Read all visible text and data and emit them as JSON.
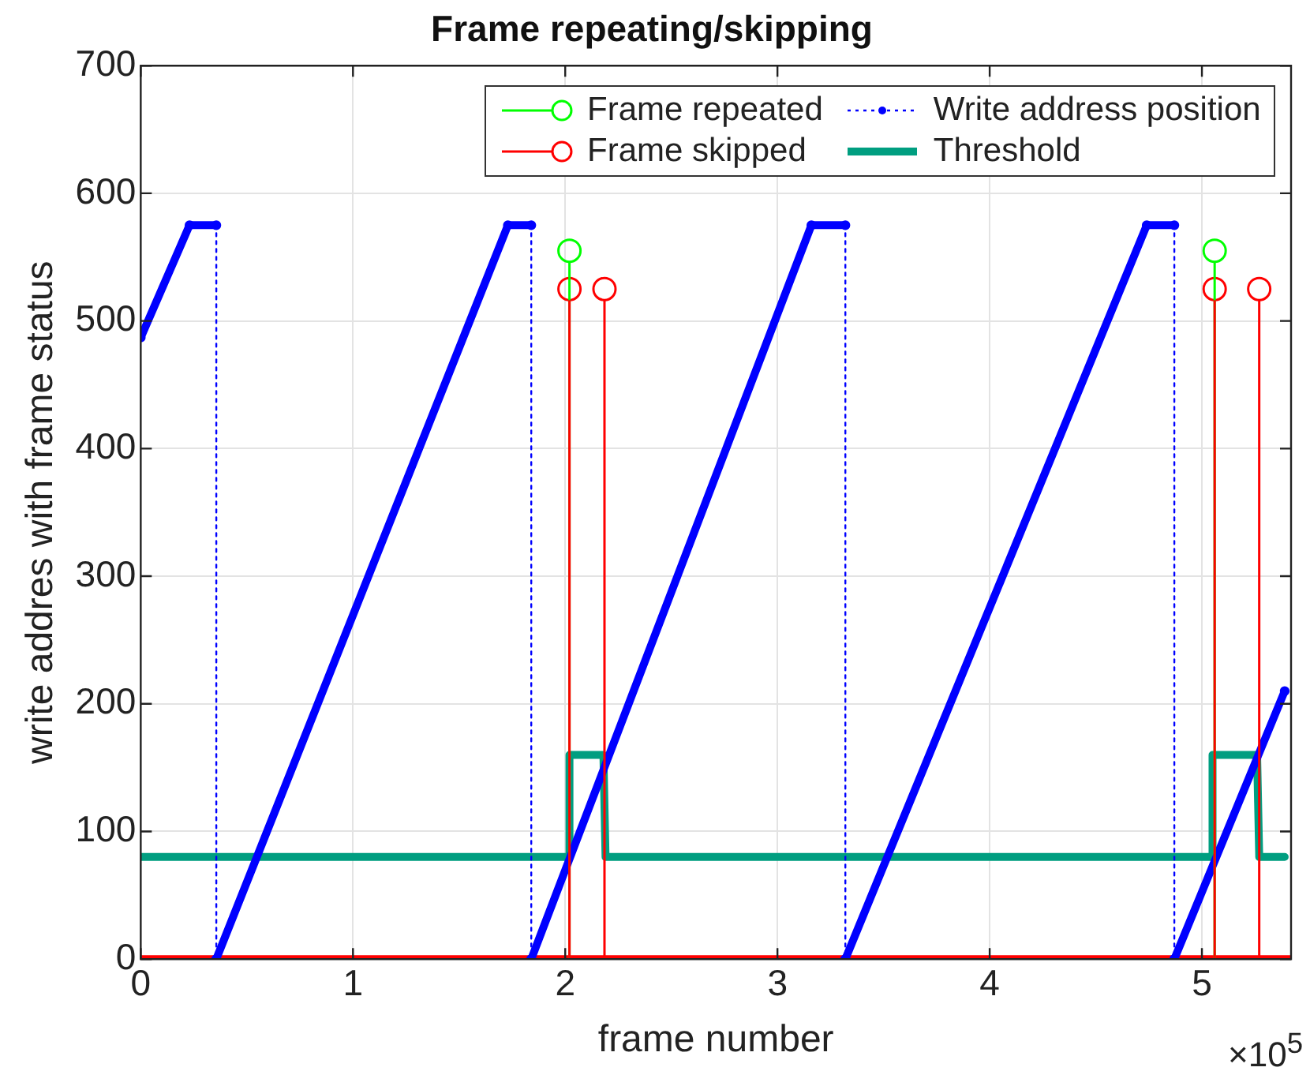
{
  "chart_data": {
    "type": "line",
    "title": "Frame repeating/skipping",
    "xlabel": "frame number",
    "ylabel": "write addres with frame status",
    "annotations": [
      "×10$^{5}$"
    ],
    "xlim": [
      0,
      5.42
    ],
    "xticks": [
      0,
      1,
      2,
      3,
      4,
      5
    ],
    "ylim": [
      0,
      700
    ],
    "yticks": [
      0,
      100,
      200,
      300,
      400,
      500,
      600,
      700
    ],
    "grid": true,
    "legend": "top right",
    "series": [
      {
        "name": "Frame repeated",
        "type": "lollipop",
        "color": "#00ff00",
        "marker": "circle",
        "x": [
          2.02,
          5.06
        ],
        "values": [
          555,
          555
        ]
      },
      {
        "name": "Write address position",
        "type": "line",
        "color": "#0000ff",
        "marker": "circle",
        "line_style": "dotted",
        "x": [
          0,
          0.23,
          0.356,
          0.356,
          1.73,
          1.84,
          1.84,
          3.16,
          3.32,
          3.32,
          4.74,
          4.87,
          4.87,
          5.39
        ],
        "values": [
          487,
          575,
          575,
          0,
          575,
          575,
          0,
          575,
          575,
          0,
          575,
          575,
          0,
          210
        ]
      },
      {
        "name": "Frame skipped",
        "type": "lollipop",
        "color": "#ff0000",
        "marker": "circle",
        "x": [
          2.02,
          2.185,
          5.06,
          5.27
        ],
        "values": [
          525,
          525,
          525,
          525
        ]
      },
      {
        "name": "Threshold",
        "type": "line",
        "color": "#009e80",
        "marker": "none",
        "line_style": "solid",
        "x": [
          0,
          2.02,
          2.02,
          2.18,
          2.19,
          5.05,
          5.05,
          5.26,
          5.27,
          5.39
        ],
        "values": [
          80,
          80,
          160,
          160,
          80,
          80,
          160,
          160,
          80,
          80
        ]
      },
      {
        "type": "line",
        "color": "#ff0000",
        "marker": "none",
        "line_style": "solid",
        "x": [
          0,
          5.42
        ],
        "values": [
          0,
          0
        ]
      }
    ]
  }
}
